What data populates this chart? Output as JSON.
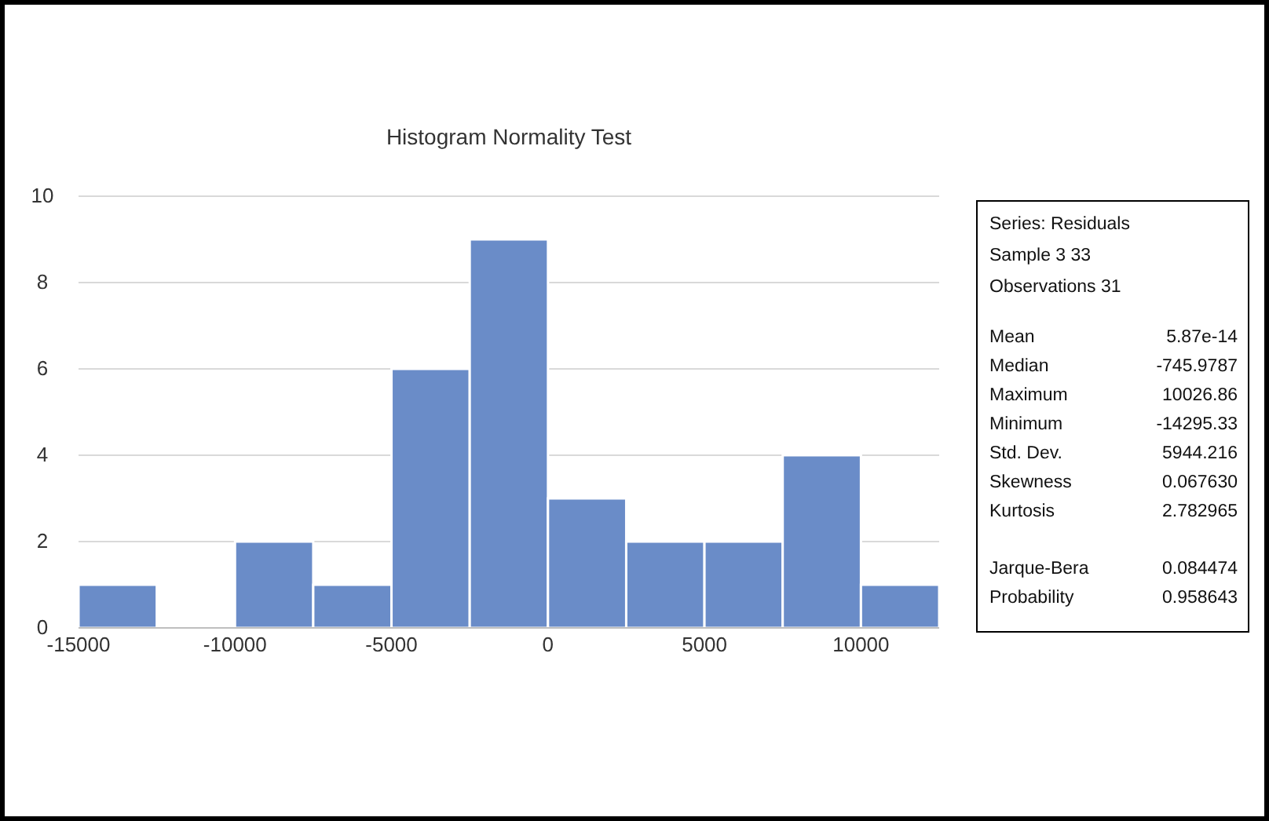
{
  "chart_data": {
    "type": "histogram",
    "title": "Histogram Normality Test",
    "bins": [
      -15000,
      -12500,
      -10000,
      -7500,
      -5000,
      -2500,
      0,
      2500,
      5000,
      7500,
      10000,
      12500
    ],
    "values": [
      1,
      0,
      2,
      1,
      6,
      9,
      3,
      2,
      2,
      4,
      1
    ],
    "color": "#6a8cc8",
    "xlim": [
      -15000,
      12500
    ],
    "xticks": [
      -15000,
      -10000,
      -5000,
      0,
      5000,
      10000
    ],
    "ylim": [
      0,
      10
    ],
    "yticks": [
      0,
      2,
      4,
      6,
      8,
      10
    ],
    "grid": "y",
    "annotations": [
      "Series: Residuals",
      "Sample 3 33",
      "Observations 31",
      "Mean",
      "5.87e-14",
      "Median",
      "-745.9787",
      "Maximum",
      "10026.86",
      "Minimum",
      "-14295.33",
      "Std. Dev.",
      "5944.216",
      "Skewness",
      "0.067630",
      "Kurtosis",
      "2.782965",
      "Jarque-Bera",
      "0.084474",
      "Probability",
      "0.958643"
    ]
  }
}
